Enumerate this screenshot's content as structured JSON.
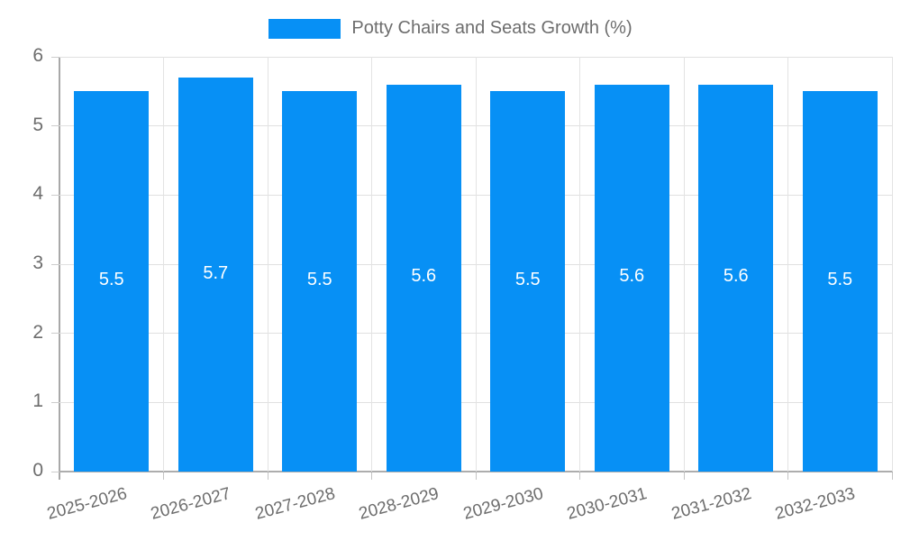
{
  "chart_data": {
    "type": "bar",
    "title": "Potty Chairs and Seats Growth (%)",
    "legend": {
      "position": "top",
      "label": "Potty Chairs and Seats Growth (%)"
    },
    "categories": [
      "2025-2026",
      "2026-2027",
      "2027-2028",
      "2028-2029",
      "2029-2030",
      "2030-2031",
      "2031-2032",
      "2032-2033"
    ],
    "series": [
      {
        "name": "Potty Chairs and Seats Growth (%)",
        "values": [
          5.5,
          5.7,
          5.5,
          5.6,
          5.5,
          5.6,
          5.6,
          5.5
        ]
      }
    ],
    "bar_labels": [
      "5.5",
      "5.7",
      "5.5",
      "5.6",
      "5.5",
      "5.6",
      "5.6",
      "5.5"
    ],
    "xlabel": "",
    "ylabel": "",
    "ylim": [
      0,
      6
    ],
    "yticks": [
      0,
      1,
      2,
      3,
      4,
      5,
      6
    ],
    "grid": true,
    "x_label_rotation_deg": -15,
    "colors": {
      "bar": "#0790f5",
      "bar_label_text": "#ffffff",
      "axis_text": "#6d6d6d",
      "gridline": "#e0e0e0",
      "axis_line": "#a8a8a8"
    }
  }
}
